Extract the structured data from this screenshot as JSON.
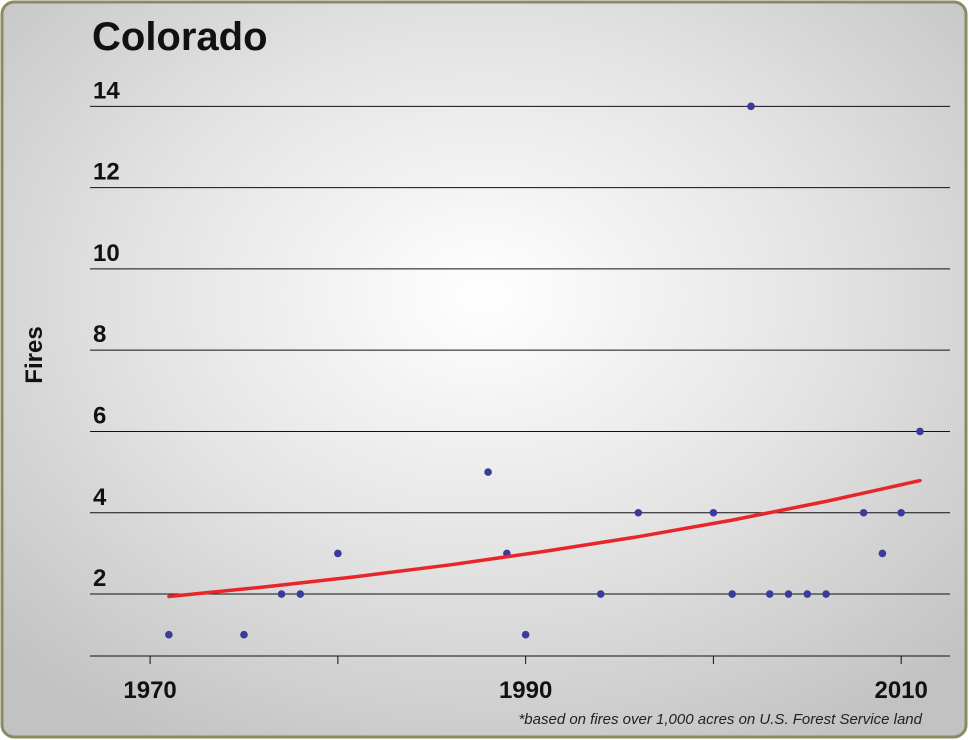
{
  "chart_data": {
    "type": "scatter",
    "title": "Colorado",
    "y_label": "Fires",
    "footnote": "*based on fires over 1,000 acres on U.S. Forest Service land",
    "series": [
      {
        "name": "Fires",
        "color": "#3b3b9c",
        "x": [
          1971,
          1975,
          1977,
          1978,
          1980,
          1988,
          1989,
          1990,
          1994,
          1996,
          2000,
          2001,
          2002,
          2003,
          2004,
          2005,
          2006,
          2008,
          2009,
          2010,
          2011
        ],
        "values": [
          1,
          1,
          2,
          2,
          3,
          5,
          3,
          1,
          2,
          4,
          4,
          2,
          14,
          2,
          2,
          2,
          2,
          4,
          3,
          4,
          6
        ]
      },
      {
        "name": "Trend",
        "color": "#e8262a",
        "kind": "line",
        "x": [
          1971,
          1976,
          1981,
          1986,
          1991,
          1996,
          2001,
          2006,
          2011
        ],
        "values": [
          1.94,
          2.17,
          2.43,
          2.72,
          3.05,
          3.41,
          3.82,
          4.28,
          4.79
        ]
      }
    ],
    "xlim": [
      1966.8,
      2012.6
    ],
    "xticks": [
      1970,
      1990,
      2010
    ],
    "xminor_ticks": [
      1980,
      2000
    ],
    "ylim": [
      0.5,
      14.5
    ],
    "yticks": [
      2,
      4,
      6,
      8,
      10,
      12,
      14
    ],
    "grid": true
  }
}
